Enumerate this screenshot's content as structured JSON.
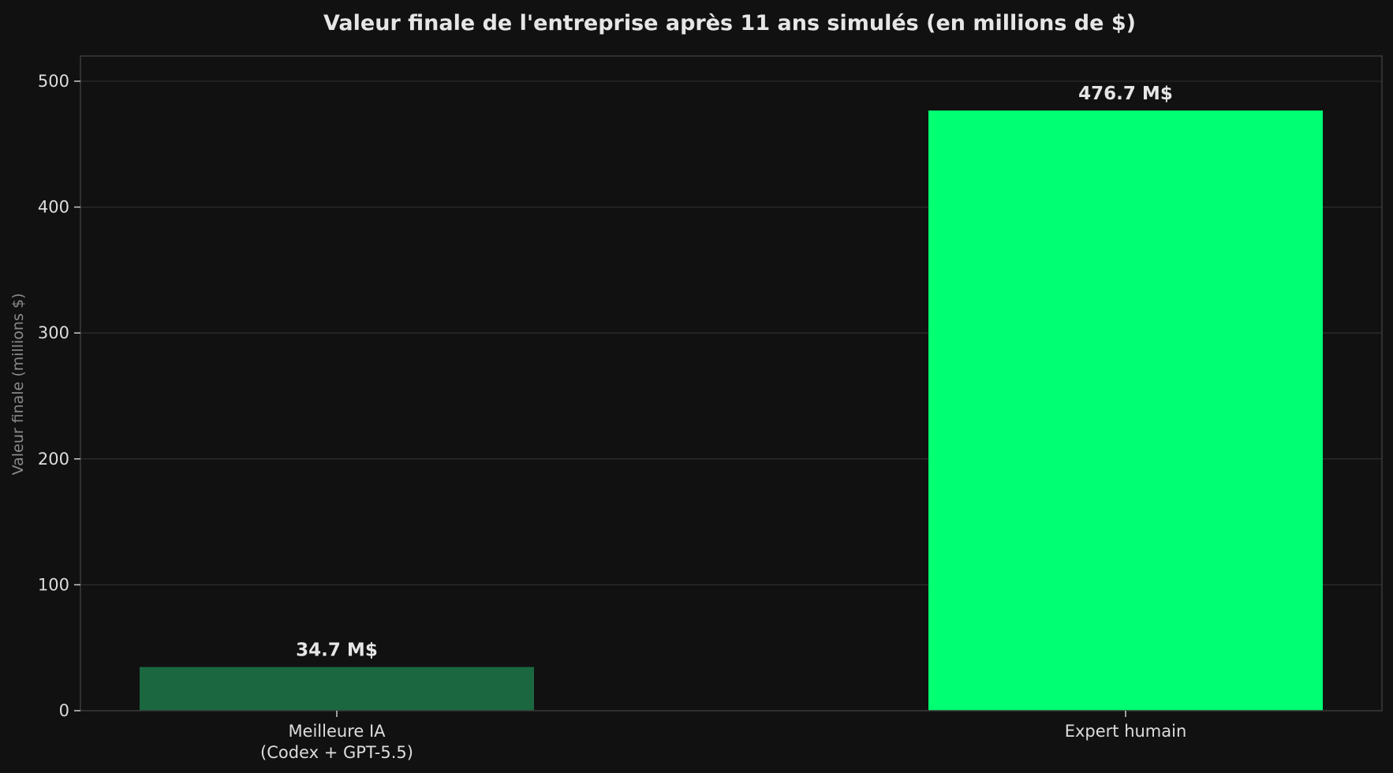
{
  "chart_data": {
    "type": "bar",
    "title": "Valeur finale de l'entreprise après 11 ans simulés (en millions de $)",
    "xlabel": "",
    "ylabel": "Valeur finale (millions $)",
    "categories": [
      [
        "Meilleure IA",
        "(Codex + GPT-5.5)"
      ],
      [
        "Expert humain"
      ]
    ],
    "values": [
      34.7,
      476.7
    ],
    "value_labels": [
      "34.7 M$",
      "476.7 M$"
    ],
    "bar_colors": [
      "#1b6840",
      "#00ff72"
    ],
    "ylim": [
      0,
      520
    ],
    "yticks": [
      0,
      100,
      200,
      300,
      400,
      500
    ],
    "grid": true,
    "legend": "none"
  },
  "colors": {
    "background": "#111111",
    "grid": "#2e2e2e",
    "axis": "#3a3a3a"
  }
}
